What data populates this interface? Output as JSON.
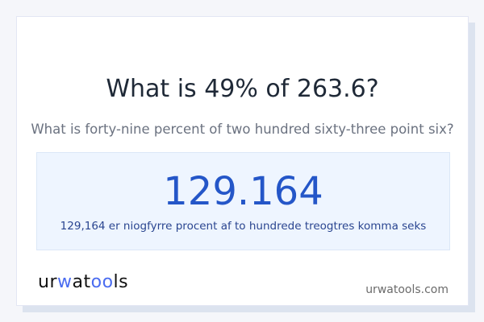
{
  "title": "What is 49% of 263.6?",
  "subtitle": "What is forty-nine percent of two hundred sixty-three point six?",
  "result": {
    "value": "129.164",
    "words": "129,164 er niogfyrre procent af to hundrede treogtres komma seks"
  },
  "footer": {
    "logo": "urwatools",
    "site": "urwatools.com"
  },
  "colors": {
    "accent": "#2456c8",
    "logo_accent": "#4a6cf0",
    "result_bg": "#eef5ff"
  }
}
